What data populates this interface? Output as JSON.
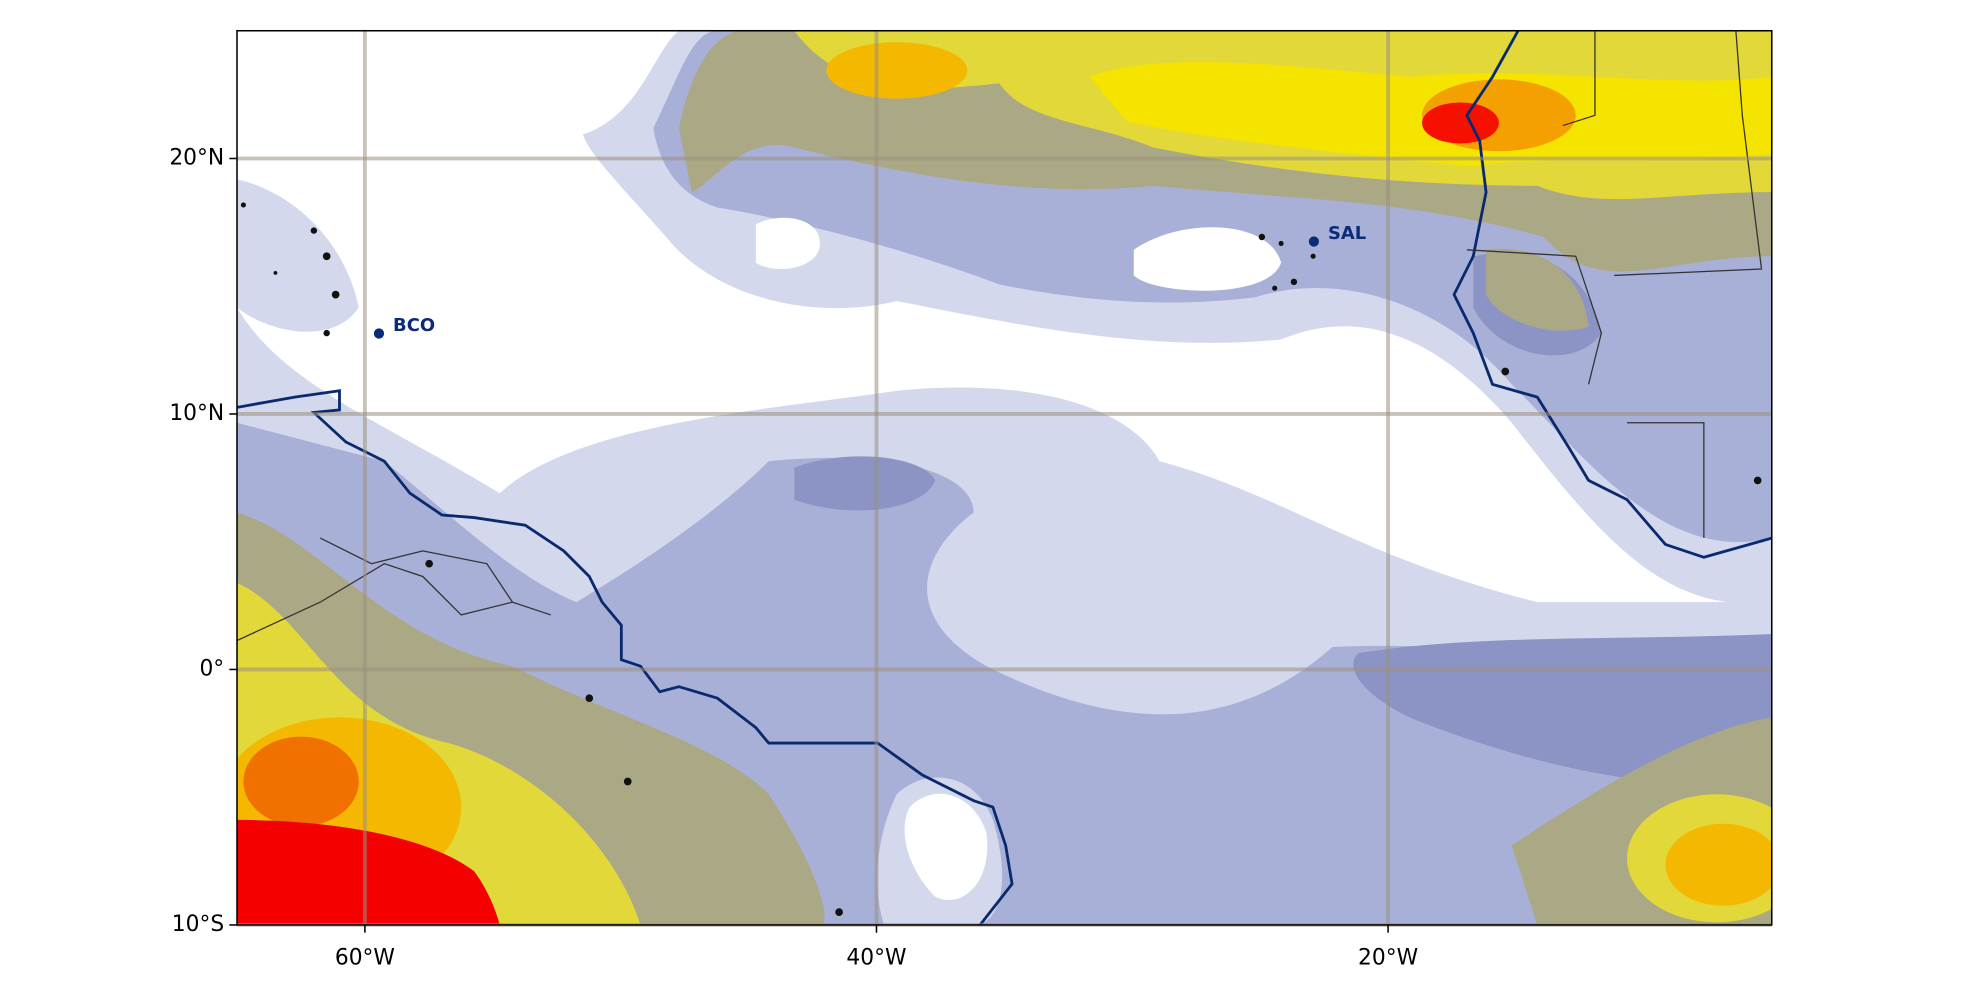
{
  "map": {
    "xlim": [
      -65,
      -5
    ],
    "ylim": [
      -10,
      25
    ],
    "xticks": [
      {
        "value": -60,
        "label": "60°W"
      },
      {
        "value": -40,
        "label": "40°W"
      },
      {
        "value": -20,
        "label": "20°W"
      }
    ],
    "yticks": [
      {
        "value": -10,
        "label": "10°S"
      },
      {
        "value": 0,
        "label": "0°"
      },
      {
        "value": 10,
        "label": "10°N"
      },
      {
        "value": 20,
        "label": "20°N"
      }
    ],
    "stations": [
      {
        "name": "BCO",
        "lon": -59.45,
        "lat": 13.15
      },
      {
        "name": "SAL",
        "lon": -22.9,
        "lat": 16.75
      }
    ]
  }
}
